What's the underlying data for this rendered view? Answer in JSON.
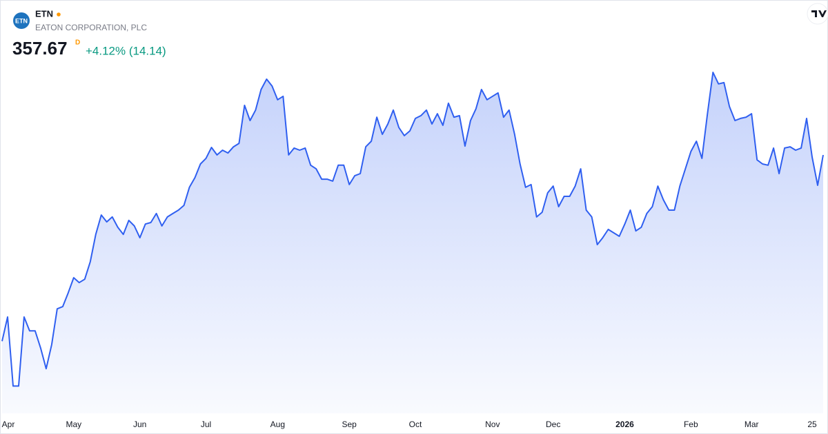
{
  "chart_data": {
    "type": "area",
    "symbol": "ETN",
    "logo_text": "ETN",
    "company": "EATON CORPORATION, PLC",
    "price": 357.67,
    "price_flag": "D",
    "change": "+4.12% (14.14)",
    "color": "#2f5ff0",
    "grid": false,
    "values": [
      270.9,
      282.2,
      250.0,
      250.0,
      282.2,
      275.7,
      275.7,
      267.7,
      258.1,
      269.3,
      286.0,
      287.0,
      293.4,
      300.5,
      298.2,
      299.8,
      307.9,
      320.7,
      329.7,
      326.5,
      328.8,
      324.0,
      320.7,
      327.2,
      324.6,
      319.1,
      325.5,
      326.2,
      330.4,
      324.6,
      328.8,
      330.4,
      332.0,
      334.2,
      342.6,
      347.1,
      353.5,
      356.1,
      361.2,
      357.7,
      359.9,
      358.6,
      361.5,
      363.1,
      380.8,
      373.7,
      378.6,
      388.2,
      393.0,
      389.8,
      383.4,
      385.0,
      357.7,
      360.9,
      359.9,
      360.9,
      352.9,
      351.2,
      346.4,
      346.4,
      345.5,
      352.9,
      352.9,
      343.9,
      348.0,
      349.0,
      361.5,
      364.1,
      375.3,
      367.3,
      372.1,
      378.6,
      370.5,
      366.7,
      368.9,
      374.7,
      376.0,
      378.6,
      372.1,
      376.9,
      371.5,
      381.8,
      375.3,
      376.0,
      361.8,
      373.7,
      379.2,
      388.2,
      383.4,
      385.0,
      386.6,
      375.3,
      378.6,
      367.3,
      353.5,
      342.6,
      343.9,
      328.8,
      331.0,
      340.0,
      343.2,
      333.6,
      338.4,
      338.4,
      343.2,
      351.2,
      332.0,
      328.8,
      315.9,
      319.1,
      323.0,
      321.4,
      319.8,
      325.5,
      332.0,
      322.3,
      324.0,
      330.4,
      333.6,
      343.2,
      336.8,
      332.0,
      332.0,
      343.2,
      351.2,
      359.3,
      364.1,
      356.1,
      376.9,
      396.2,
      390.8,
      391.4,
      380.2,
      373.7,
      374.7,
      375.3,
      376.9,
      355.4,
      353.5,
      352.9,
      360.9,
      349.0,
      360.9,
      361.5,
      359.9,
      360.9,
      374.7,
      356.7,
      343.53,
      357.67
    ],
    "ylim": [
      240.5,
      401.0
    ],
    "xlim": [
      0,
      149
    ],
    "xticks": [
      {
        "value": 1,
        "label": "Apr"
      },
      {
        "value": 13,
        "label": "May"
      },
      {
        "value": 25,
        "label": "Jun"
      },
      {
        "value": 37,
        "label": "Jul"
      },
      {
        "value": 50,
        "label": "Aug"
      },
      {
        "value": 63,
        "label": "Sep"
      },
      {
        "value": 75,
        "label": "Oct"
      },
      {
        "value": 89,
        "label": "Nov"
      },
      {
        "value": 100,
        "label": "Dec"
      },
      {
        "value": 113,
        "label": "2026"
      },
      {
        "value": 125,
        "label": "Feb"
      },
      {
        "value": 136,
        "label": "Mar"
      },
      {
        "value": 147,
        "label": "25"
      }
    ]
  }
}
